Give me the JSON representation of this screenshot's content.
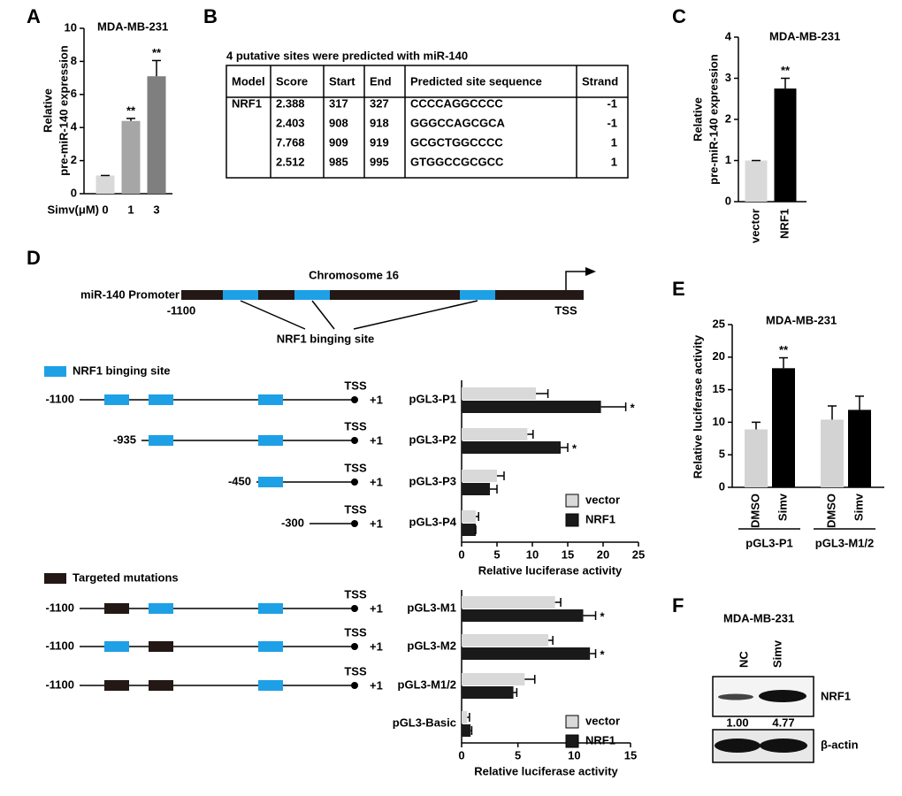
{
  "panel_labels": [
    "A",
    "B",
    "C",
    "D",
    "E",
    "F"
  ],
  "chart_data": [
    {
      "type": "bar",
      "title": "MDA-MB-231",
      "y_label": [
        "Relative",
        "pre-miR-140 expression"
      ],
      "x_label": "Simv(μM)",
      "categories": [
        "0",
        "1",
        "3"
      ],
      "values": [
        1.1,
        4.4,
        7.1
      ],
      "errors": [
        0,
        0.15,
        0.95
      ],
      "colors": [
        "#d9d9d9",
        "#a6a6a6",
        "#7f7f7f"
      ],
      "annotations": [
        null,
        "**",
        "**"
      ],
      "ylim": [
        0,
        10
      ],
      "yticks": [
        0,
        2,
        4,
        6,
        8,
        10
      ]
    },
    {
      "type": "bar",
      "title": "MDA-MB-231",
      "y_label": [
        "Relative",
        "pre-miR-140 expression"
      ],
      "categories": [
        "vector",
        "NRF1"
      ],
      "values": [
        1.0,
        2.75
      ],
      "errors": [
        0,
        0.25
      ],
      "colors": [
        "#d9d9d9",
        "#000000"
      ],
      "annotations": [
        null,
        "**"
      ],
      "ylim": [
        0,
        4
      ],
      "yticks": [
        0,
        1,
        2,
        3,
        4
      ]
    },
    {
      "type": "hbar",
      "x_label": "Relative luciferase activity",
      "categories": [
        "pGL3-P1",
        "pGL3-P2",
        "pGL3-P3",
        "pGL3-P4"
      ],
      "series": [
        {
          "name": "vector",
          "color": "#d9d9d9",
          "values": [
            10.5,
            9.3,
            5.0,
            2.0
          ],
          "errors": [
            1.7,
            0.8,
            1.0,
            0.4
          ],
          "annotations": [
            null,
            null,
            null,
            null
          ]
        },
        {
          "name": "NRF1",
          "color": "#1a1a1a",
          "values": [
            19.7,
            14.0,
            4.0,
            2.0
          ],
          "errors": [
            3.5,
            1.0,
            1.0,
            0
          ],
          "annotations": [
            "*",
            "*",
            null,
            null
          ]
        }
      ],
      "xlim": [
        0,
        25
      ],
      "xticks": [
        0,
        5,
        10,
        15,
        20,
        25
      ]
    },
    {
      "type": "hbar",
      "x_label": "Relative luciferase activity",
      "categories": [
        "pGL3-M1",
        "pGL3-M2",
        "pGL3-M1/2",
        "pGL3-Basic"
      ],
      "series": [
        {
          "name": "vector",
          "color": "#d9d9d9",
          "values": [
            8.3,
            7.7,
            5.6,
            0.5
          ],
          "errors": [
            0.5,
            0.4,
            0.9,
            0.2
          ],
          "annotations": [
            null,
            null,
            null,
            null
          ]
        },
        {
          "name": "NRF1",
          "color": "#1a1a1a",
          "values": [
            10.8,
            11.4,
            4.6,
            0.8
          ],
          "errors": [
            1.1,
            0.5,
            0.3,
            0.1
          ],
          "annotations": [
            "*",
            "*",
            null,
            null
          ]
        }
      ],
      "xlim": [
        0,
        15
      ],
      "xticks": [
        0,
        5,
        10,
        15
      ]
    },
    {
      "type": "bar",
      "title": "MDA-MB-231",
      "y_label": [
        "Relative luciferase activity"
      ],
      "categories": [
        "DMSO",
        "Simv",
        "DMSO",
        "Simv"
      ],
      "groups": [
        "pGL3-P1",
        "pGL3-M1/2"
      ],
      "values": [
        8.9,
        18.3,
        10.4,
        11.9
      ],
      "errors": [
        1.1,
        1.6,
        2.1,
        2.1
      ],
      "colors": [
        "#d3d3d3",
        "#000000",
        "#d3d3d3",
        "#000000"
      ],
      "annotations": [
        null,
        "**",
        null,
        null
      ],
      "ylim": [
        0,
        25
      ],
      "yticks": [
        0,
        5,
        10,
        15,
        20,
        25
      ]
    }
  ],
  "table": {
    "title": "4 putative sites were predicted with miR-140",
    "header": [
      "Model",
      "Score",
      "Start",
      "End",
      "Predicted site sequence",
      "Strand"
    ],
    "model": "NRF1",
    "rows": [
      [
        2.388,
        317,
        327,
        "CCCCAGGCCCC",
        -1
      ],
      [
        2.403,
        908,
        918,
        "GGGCCAGCGCA",
        -1
      ],
      [
        7.768,
        909,
        919,
        "GCGCTGGCCCC",
        1
      ],
      [
        2.512,
        985,
        995,
        "GTGGCCGCGCC",
        1
      ]
    ]
  },
  "diagram": {
    "promoter_label": "miR-140 Promoter",
    "chromosome": "Chromosome 16",
    "start": "-1100",
    "tss": "TSS",
    "site_label": "NRF1 binging site",
    "legend_site": "NRF1 binging site",
    "legend_mutation": "Targeted mutations",
    "constructs": [
      {
        "start": "-1100",
        "tss": "TSS",
        "end": "+1"
      },
      {
        "start": "-935",
        "tss": "TSS",
        "end": "+1"
      },
      {
        "start": "-450",
        "tss": "TSS",
        "end": "+1"
      },
      {
        "start": "-300",
        "tss": "TSS",
        "end": "+1"
      },
      {
        "start": "-1100",
        "tss": "TSS",
        "end": "+1"
      },
      {
        "start": "-1100",
        "tss": "TSS",
        "end": "+1"
      },
      {
        "start": "-1100",
        "tss": "TSS",
        "end": "+1"
      }
    ]
  },
  "blot": {
    "title": "MDA-MB-231",
    "lanes": [
      "NC",
      "Simv"
    ],
    "bands": [
      "NRF1",
      "β-actin"
    ],
    "quant": [
      "1.00",
      "4.77"
    ]
  }
}
